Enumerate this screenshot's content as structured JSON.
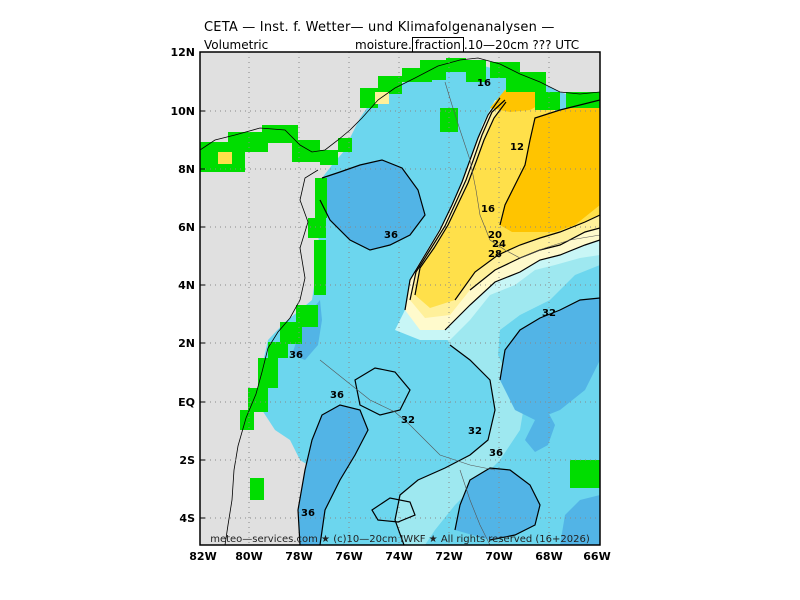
{
  "header": {
    "title": "CETA — Inst. f. Wetter— und Klimafolgenanalysen —",
    "variable_left": "Volumetric",
    "variable_right_pre": "moisture.",
    "variable_right_box": "fraction",
    "variable_right_post": ".10—20cm ??? UTC"
  },
  "footer": {
    "credit": "meteo—services.com ★ (c)10—20cm IWKF ★ All rights reserved (16+2026)"
  },
  "map": {
    "lat_ticks": [
      "12N",
      "10N",
      "8N",
      "6N",
      "4N",
      "2N",
      "EQ",
      "2S",
      "4S"
    ],
    "lon_ticks": [
      "82W",
      "80W",
      "78W",
      "76W",
      "74W",
      "72W",
      "70W",
      "68W",
      "66W"
    ],
    "contour_labels": [
      "16",
      "12",
      "16",
      "20",
      "24",
      "28",
      "36",
      "32",
      "36",
      "36",
      "32",
      "32",
      "36",
      "36"
    ],
    "colors": {
      "ocean_gray": "#e0e0e0",
      "border_green": "#00dd00",
      "very_wet": "#52b4e6",
      "wet": "#6cd6ee",
      "moist": "#9ee8f0",
      "lightcyan": "#c8f6f6",
      "cream": "#fffacc",
      "lightyellow": "#fff09a",
      "yellow": "#ffe04a",
      "orange": "#ffc400"
    }
  }
}
